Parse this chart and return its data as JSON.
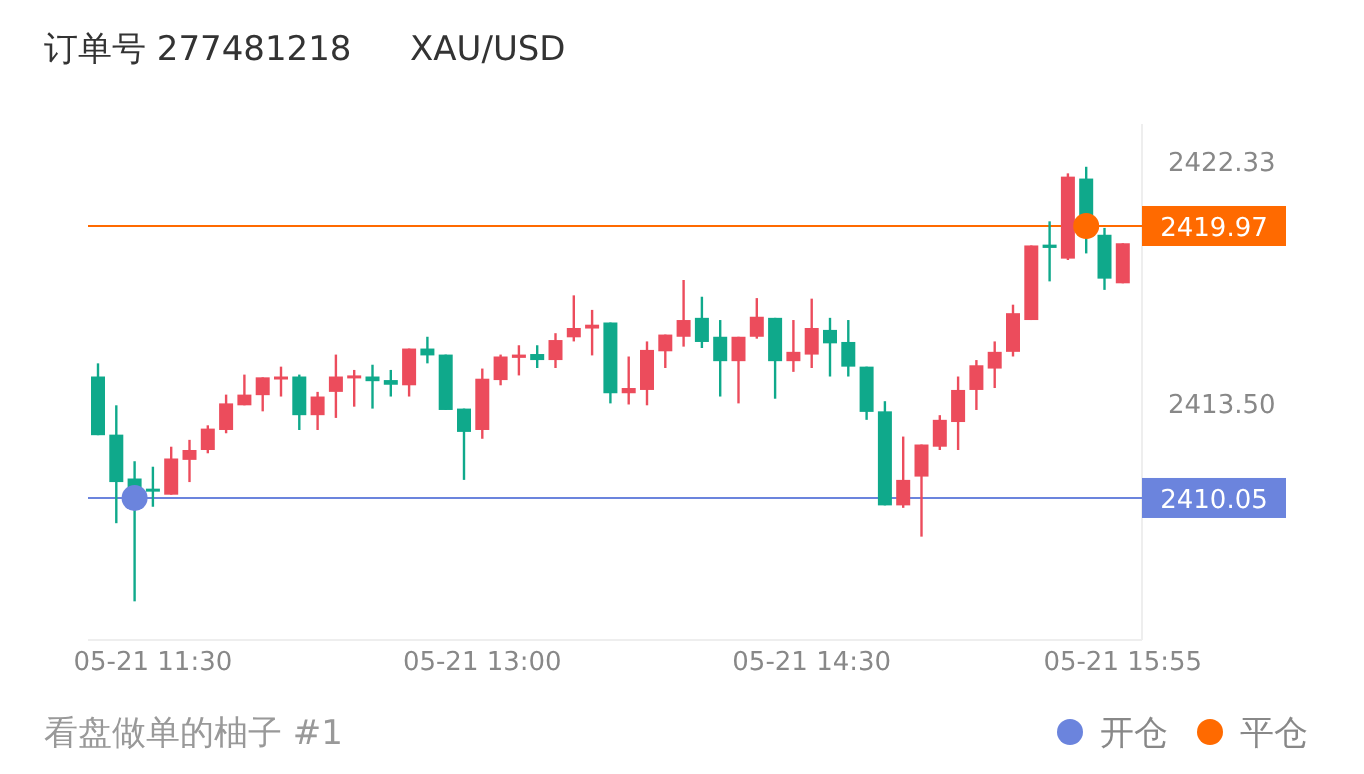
{
  "chart_data": {
    "type": "candlestick",
    "title": "订单号 277481218",
    "subtitle": "XAU/USD",
    "categories": [
      null,
      null,
      null,
      "05-21 11:30",
      null,
      null,
      null,
      null,
      null,
      null,
      null,
      null,
      null,
      null,
      null,
      null,
      null,
      null,
      null,
      null,
      null,
      "05-21 13:00",
      null,
      null,
      null,
      null,
      null,
      null,
      null,
      null,
      null,
      null,
      null,
      null,
      null,
      null,
      null,
      null,
      null,
      "05-21 14:30",
      null,
      null,
      null,
      null,
      null,
      null,
      null,
      null,
      null,
      null,
      null,
      null,
      null,
      null,
      null,
      null,
      "05-21 15:55"
    ],
    "ohlc": [
      [
        2414.48,
        2414.96,
        2412.34,
        2412.34
      ],
      [
        2412.36,
        2413.43,
        2409.13,
        2410.63
      ],
      [
        2410.76,
        2411.39,
        2406.28,
        2410.34
      ],
      [
        2410.39,
        2411.19,
        2409.73,
        2410.29
      ],
      [
        2410.17,
        2411.92,
        2410.17,
        2411.49
      ],
      [
        2411.44,
        2412.17,
        2410.63,
        2411.8
      ],
      [
        2411.8,
        2412.7,
        2411.68,
        2412.58
      ],
      [
        2412.53,
        2413.82,
        2412.41,
        2413.5
      ],
      [
        2413.43,
        2414.55,
        2413.43,
        2413.82
      ],
      [
        2413.8,
        2414.45,
        2413.21,
        2414.45
      ],
      [
        2414.43,
        2414.84,
        2413.75,
        2414.48
      ],
      [
        2414.48,
        2414.55,
        2412.53,
        2413.07
      ],
      [
        2413.07,
        2413.92,
        2412.53,
        2413.75
      ],
      [
        2413.92,
        2415.28,
        2412.97,
        2414.48
      ],
      [
        2414.45,
        2414.72,
        2413.38,
        2414.52
      ],
      [
        2414.48,
        2414.91,
        2413.31,
        2414.31
      ],
      [
        2414.35,
        2414.72,
        2413.75,
        2414.18
      ],
      [
        2414.16,
        2415.5,
        2413.75,
        2415.5
      ],
      [
        2415.5,
        2415.93,
        2414.96,
        2415.25
      ],
      [
        2415.28,
        2415.28,
        2413.26,
        2413.26
      ],
      [
        2413.31,
        2413.31,
        2410.71,
        2412.46
      ],
      [
        2412.53,
        2414.77,
        2412.21,
        2414.4
      ],
      [
        2414.35,
        2415.28,
        2414.16,
        2415.21
      ],
      [
        2415.16,
        2415.62,
        2414.52,
        2415.28
      ],
      [
        2415.3,
        2415.62,
        2414.79,
        2415.08
      ],
      [
        2415.08,
        2416.06,
        2414.79,
        2415.81
      ],
      [
        2415.91,
        2417.44,
        2415.76,
        2416.25
      ],
      [
        2416.23,
        2416.91,
        2415.25,
        2416.37
      ],
      [
        2416.45,
        2416.45,
        2413.5,
        2413.87
      ],
      [
        2413.87,
        2415.21,
        2413.46,
        2414.06
      ],
      [
        2413.99,
        2415.76,
        2413.43,
        2415.45
      ],
      [
        2415.4,
        2416.01,
        2414.79,
        2416.01
      ],
      [
        2415.93,
        2418,
        2415.57,
        2416.54
      ],
      [
        2416.62,
        2417.39,
        2415.52,
        2415.74
      ],
      [
        2415.93,
        2416.54,
        2413.75,
        2415.04
      ],
      [
        2415.04,
        2415.93,
        2413.5,
        2415.93
      ],
      [
        2415.93,
        2417.34,
        2415.86,
        2416.66
      ],
      [
        2416.62,
        2416.62,
        2413.67,
        2415.04
      ],
      [
        2415.04,
        2416.54,
        2414.65,
        2415.38
      ],
      [
        2415.28,
        2417.32,
        2414.79,
        2416.25
      ],
      [
        2416.18,
        2416.62,
        2414.48,
        2415.69
      ],
      [
        2415.74,
        2416.54,
        2414.48,
        2414.84
      ],
      [
        2414.84,
        2414.84,
        2412.9,
        2413.19
      ],
      [
        2413.21,
        2413.58,
        2409.78,
        2409.78
      ],
      [
        2409.78,
        2412.29,
        2409.69,
        2410.71
      ],
      [
        2410.83,
        2412,
        2408.64,
        2412
      ],
      [
        2411.92,
        2413.07,
        2411.8,
        2412.9
      ],
      [
        2412.82,
        2414.48,
        2411.8,
        2413.99
      ],
      [
        2413.99,
        2415.08,
        2413.26,
        2414.89
      ],
      [
        2414.77,
        2415.76,
        2414.06,
        2415.38
      ],
      [
        2415.38,
        2417.1,
        2415.21,
        2416.79
      ],
      [
        2416.54,
        2419.26,
        2416.54,
        2419.26
      ],
      [
        2419.29,
        2420.14,
        2417.95,
        2419.17
      ],
      [
        2418.78,
        2421.89,
        2418.73,
        2421.77
      ],
      [
        2421.7,
        2422.13,
        2418.97,
        2420.19
      ],
      [
        2419.65,
        2419.9,
        2417.64,
        2418.05
      ],
      [
        2417.88,
        2419.34,
        2417.88,
        2419.34
      ]
    ],
    "colors": [
      "#0fa98b",
      "#0fa98b",
      "#0fa98b",
      "#0fa98b",
      "#ec4c5c",
      "#ec4c5c",
      "#ec4c5c",
      "#ec4c5c",
      "#ec4c5c",
      "#ec4c5c",
      "#ec4c5c",
      "#0fa98b",
      "#ec4c5c",
      "#ec4c5c",
      "#ec4c5c",
      "#0fa98b",
      "#0fa98b",
      "#ec4c5c",
      "#0fa98b",
      "#0fa98b",
      "#0fa98b",
      "#ec4c5c",
      "#ec4c5c",
      "#ec4c5c",
      "#0fa98b",
      "#ec4c5c",
      "#ec4c5c",
      "#ec4c5c",
      "#0fa98b",
      "#ec4c5c",
      "#ec4c5c",
      "#ec4c5c",
      "#ec4c5c",
      "#0fa98b",
      "#0fa98b",
      "#ec4c5c",
      "#ec4c5c",
      "#0fa98b",
      "#ec4c5c",
      "#ec4c5c",
      "#0fa98b",
      "#0fa98b",
      "#0fa98b",
      "#0fa98b",
      "#ec4c5c",
      "#ec4c5c",
      "#ec4c5c",
      "#ec4c5c",
      "#ec4c5c",
      "#ec4c5c",
      "#ec4c5c",
      "#ec4c5c",
      "#0fa98b",
      "#ec4c5c",
      "#0fa98b",
      "#0fa98b",
      "#ec4c5c"
    ],
    "series": [
      {
        "type": "scatter",
        "name": "开仓",
        "color": "#6b84dd",
        "values": [
          null,
          null,
          2410.05,
          null,
          null,
          null,
          null,
          null,
          null,
          null,
          null,
          null,
          null,
          null,
          null,
          null,
          null,
          null,
          null,
          null,
          null,
          null,
          null,
          null,
          null,
          null,
          null,
          null,
          null,
          null,
          null,
          null,
          null,
          null,
          null,
          null,
          null,
          null,
          null,
          null,
          null,
          null,
          null,
          null,
          null,
          null,
          null,
          null,
          null,
          null,
          null,
          null,
          null,
          null,
          null,
          null,
          null
        ]
      },
      {
        "type": "scatter",
        "name": "平仓",
        "color": "#ff6a00",
        "values": [
          null,
          null,
          null,
          null,
          null,
          null,
          null,
          null,
          null,
          null,
          null,
          null,
          null,
          null,
          null,
          null,
          null,
          null,
          null,
          null,
          null,
          null,
          null,
          null,
          null,
          null,
          null,
          null,
          null,
          null,
          null,
          null,
          null,
          null,
          null,
          null,
          null,
          null,
          null,
          null,
          null,
          null,
          null,
          null,
          null,
          null,
          null,
          null,
          null,
          null,
          null,
          null,
          null,
          null,
          2419.97,
          null,
          null
        ]
      }
    ],
    "marker": "circle",
    "ylim": [
      2404.87,
      2423.69
    ],
    "yticks": [
      {
        "value": 2413.5,
        "label": "2413.50"
      },
      2422.33
    ],
    "ref_lines": [
      {
        "axis": "y",
        "value": 2419.97,
        "label": "2419.97",
        "color": "#ff6a00"
      },
      {
        "axis": "y",
        "value": 2410.05,
        "label": "2410.05",
        "color": "#6b84dd"
      }
    ],
    "legend": "bottom right",
    "annotations": [
      "看盘做单的柚子 #1"
    ]
  }
}
